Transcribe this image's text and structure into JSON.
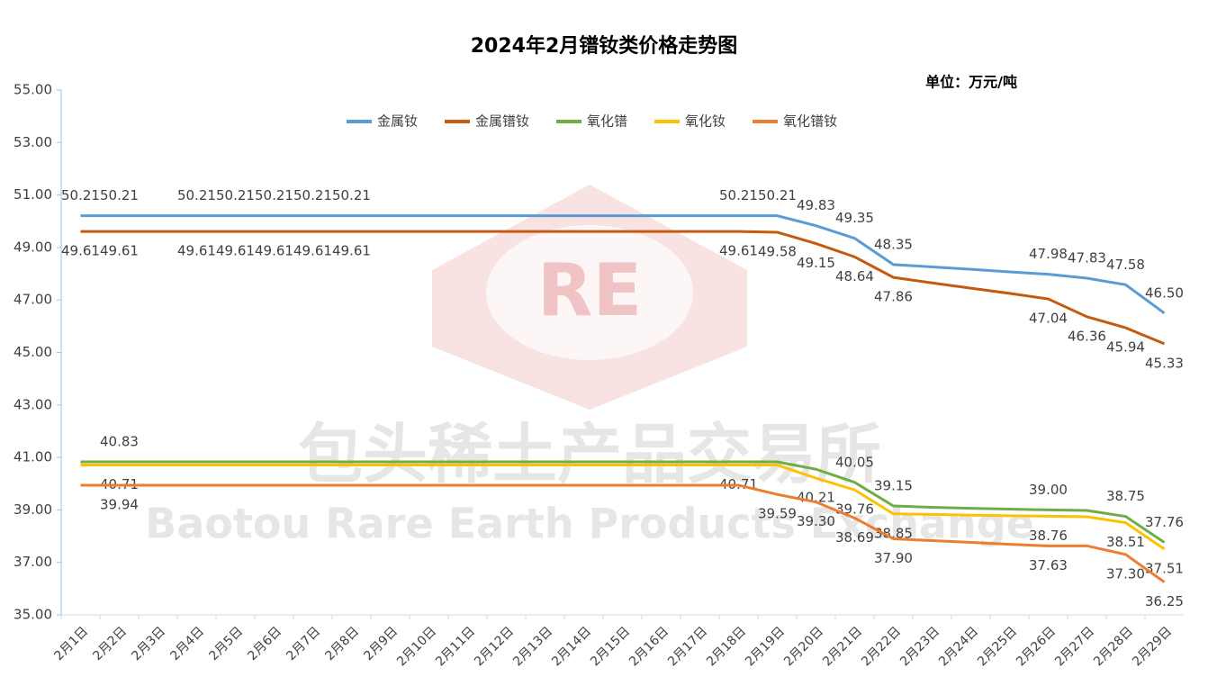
{
  "chart_data": {
    "type": "line",
    "title": "2024年2月镨钕类价格走势图",
    "unit": "单位：万元/吨",
    "watermark": {
      "cn": "包头稀土产品交易所",
      "en": "Baotou Rare Earth Products Exchange",
      "logo": "RE"
    },
    "categories": [
      "2月1日",
      "2月2日",
      "2月3日",
      "2月4日",
      "2月5日",
      "2月6日",
      "2月7日",
      "2月8日",
      "2月9日",
      "2月10日",
      "2月11日",
      "2月12日",
      "2月13日",
      "2月14日",
      "2月15日",
      "2月16日",
      "2月17日",
      "2月18日",
      "2月19日",
      "2月20日",
      "2月21日",
      "2月22日",
      "2月23日",
      "2月24日",
      "2月25日",
      "2月26日",
      "2月27日",
      "2月28日",
      "2月29日"
    ],
    "ylim": [
      35,
      55
    ],
    "yticks": [
      {
        "value": 35,
        "label": "35.00"
      },
      {
        "value": 37,
        "label": "37.00"
      },
      {
        "value": 39,
        "label": "39.00"
      },
      {
        "value": 41,
        "label": "41.00"
      },
      {
        "value": 43,
        "label": "43.00"
      },
      {
        "value": 45,
        "label": "45.00"
      },
      {
        "value": 47,
        "label": "47.00"
      },
      {
        "value": 49,
        "label": "49.00"
      },
      {
        "value": 51,
        "label": "51.00"
      },
      {
        "value": 53,
        "label": "53.00"
      },
      {
        "value": 55,
        "label": "55.00"
      }
    ],
    "legend": "top",
    "series": [
      {
        "name": "金属钕",
        "color": "#5b9bd5",
        "label_side": "above",
        "values": [
          50.21,
          50.21,
          50.21,
          50.21,
          50.21,
          50.21,
          50.21,
          50.21,
          50.21,
          50.21,
          50.21,
          50.21,
          50.21,
          50.21,
          50.21,
          50.21,
          50.21,
          50.21,
          50.21,
          49.83,
          49.35,
          48.35,
          48.26,
          48.17,
          48.07,
          47.98,
          47.83,
          47.58,
          46.5
        ],
        "value_labels": [
          "50.21",
          "50.21",
          null,
          "50.21",
          "50.21",
          "50.21",
          "50.21",
          "50.21",
          null,
          null,
          null,
          null,
          null,
          null,
          null,
          null,
          null,
          "50.21",
          "50.21",
          "49.83",
          "49.35",
          "48.35",
          null,
          null,
          null,
          "47.98",
          "47.83",
          "47.58",
          "46.50"
        ]
      },
      {
        "name": "金属镨钕",
        "color": "#c55a11",
        "label_side": "below",
        "values": [
          49.61,
          49.61,
          49.61,
          49.61,
          49.61,
          49.61,
          49.61,
          49.61,
          49.61,
          49.61,
          49.61,
          49.61,
          49.61,
          49.61,
          49.61,
          49.61,
          49.61,
          49.61,
          49.58,
          49.15,
          48.64,
          47.86,
          47.65,
          47.45,
          47.25,
          47.04,
          46.36,
          45.94,
          45.33
        ],
        "value_labels": [
          "49.61",
          "49.61",
          null,
          "49.61",
          "49.61",
          "49.61",
          "49.61",
          "49.61",
          null,
          null,
          null,
          null,
          null,
          null,
          null,
          null,
          null,
          "49.61",
          "49.58",
          "49.15",
          "48.64",
          "47.86",
          null,
          null,
          null,
          "47.04",
          "46.36",
          "45.94",
          "45.33"
        ]
      },
      {
        "name": "氧化镨",
        "color": "#70ad47",
        "label_side": "above",
        "values": [
          40.83,
          40.83,
          40.83,
          40.83,
          40.83,
          40.83,
          40.83,
          40.83,
          40.83,
          40.83,
          40.83,
          40.83,
          40.83,
          40.83,
          40.83,
          40.83,
          40.83,
          40.83,
          40.83,
          40.55,
          40.05,
          39.15,
          39.1,
          39.06,
          39.03,
          39.0,
          38.98,
          38.75,
          37.76
        ],
        "value_labels": [
          null,
          "40.83",
          null,
          null,
          null,
          null,
          null,
          null,
          null,
          null,
          null,
          null,
          null,
          null,
          null,
          null,
          null,
          null,
          null,
          null,
          "40.05",
          "39.15",
          null,
          null,
          null,
          "39.00",
          null,
          "38.75",
          "37.76"
        ]
      },
      {
        "name": "氧化钕",
        "color": "#ffc000",
        "label_side": "below",
        "values": [
          40.71,
          40.71,
          40.71,
          40.71,
          40.71,
          40.71,
          40.71,
          40.71,
          40.71,
          40.71,
          40.71,
          40.71,
          40.71,
          40.71,
          40.71,
          40.71,
          40.71,
          40.71,
          40.71,
          40.21,
          39.76,
          38.85,
          38.83,
          38.8,
          38.78,
          38.76,
          38.74,
          38.51,
          37.51
        ],
        "value_labels": [
          null,
          "40.71",
          null,
          null,
          null,
          null,
          null,
          null,
          null,
          null,
          null,
          null,
          null,
          null,
          null,
          null,
          null,
          "40.71",
          null,
          "40.21",
          "39.76",
          "38.85",
          null,
          null,
          null,
          "38.76",
          null,
          "38.51",
          "37.51"
        ]
      },
      {
        "name": "氧化镨钕",
        "color": "#ed7d31",
        "label_side": "below",
        "values": [
          39.94,
          39.94,
          39.94,
          39.94,
          39.94,
          39.94,
          39.94,
          39.94,
          39.94,
          39.94,
          39.94,
          39.94,
          39.94,
          39.94,
          39.94,
          39.94,
          39.94,
          39.94,
          39.59,
          39.3,
          38.69,
          37.9,
          37.83,
          37.76,
          37.69,
          37.63,
          37.63,
          37.3,
          36.25
        ],
        "value_labels": [
          null,
          "39.94",
          null,
          null,
          null,
          null,
          null,
          null,
          null,
          null,
          null,
          null,
          null,
          null,
          null,
          null,
          null,
          null,
          "39.59",
          "39.30",
          "38.69",
          "37.90",
          null,
          null,
          null,
          "37.63",
          null,
          "37.30",
          "36.25"
        ]
      }
    ]
  }
}
